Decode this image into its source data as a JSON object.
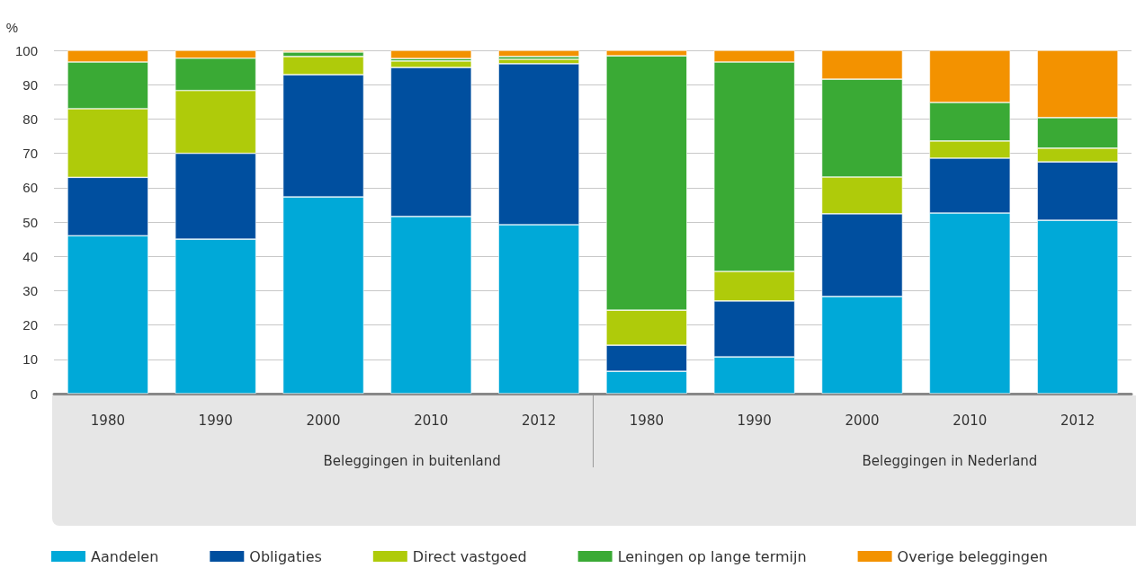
{
  "chart_data": {
    "type": "bar",
    "stacked": true,
    "ylabel": "%",
    "categories": [
      "1980",
      "1990",
      "2000",
      "2010",
      "2012",
      "1980",
      "1990",
      "2000",
      "2010",
      "2012"
    ],
    "series": [
      {
        "name": "Aandelen",
        "color": "#00a9d8",
        "values": [
          46,
          45,
          57.3,
          51.6,
          49.2,
          6.5,
          10.7,
          28.3,
          52.6,
          50.5
        ]
      },
      {
        "name": "Obligaties",
        "color": "#004f9f",
        "values": [
          17,
          25,
          35.6,
          43.4,
          46.9,
          7.6,
          16.3,
          24.1,
          16,
          17
        ]
      },
      {
        "name": "Direct vastgoed",
        "color": "#afcb0a",
        "values": [
          20,
          18.3,
          5.3,
          1.9,
          1.3,
          10.2,
          8.6,
          10.7,
          5,
          4
        ]
      },
      {
        "name": "Leningen op lange termijn",
        "color": "#3aaa35",
        "values": [
          13.6,
          9.4,
          1.3,
          0.7,
          0.8,
          74.1,
          61,
          28.5,
          11.2,
          8.9
        ]
      },
      {
        "name": "Overige beleggingen",
        "color": "#f39200",
        "values": [
          3.4,
          2.3,
          0.5,
          2.4,
          1.8,
          1.6,
          3.4,
          8.4,
          15.2,
          19.6
        ]
      }
    ],
    "annotations": [
      "Beleggingen in buitenland",
      "Beleggingen in Nederland"
    ],
    "ylim": [
      0,
      100
    ],
    "yticks": [
      0,
      10,
      20,
      30,
      40,
      50,
      60,
      70,
      80,
      90,
      100
    ],
    "grid": "y",
    "legend": "bottom left"
  }
}
